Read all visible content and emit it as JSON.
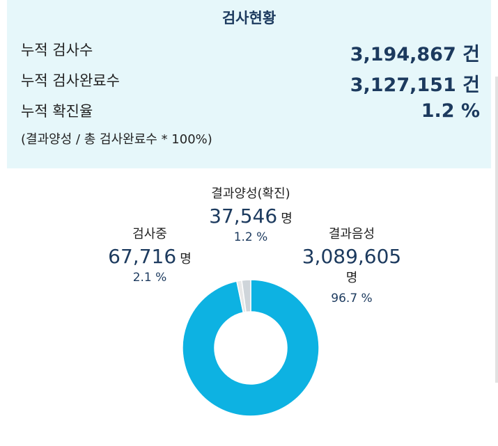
{
  "summary": {
    "title": "검사현황",
    "rows": [
      {
        "label": "누적 검사수",
        "value": "3,194,867",
        "unit": "건"
      },
      {
        "label": "누적 검사완료수",
        "value": "3,127,151",
        "unit": "건"
      },
      {
        "label": "누적 확진율",
        "value": "1.2",
        "unit": "%"
      }
    ],
    "note": "(결과양성 / 총 검사완료수 * 100%)"
  },
  "chart_data": {
    "type": "pie",
    "categories": [
      "결과음성",
      "결과양성(확진)",
      "검사중"
    ],
    "values": [
      3089605,
      37546,
      67716
    ],
    "units": [
      "명",
      "명",
      "명"
    ],
    "percent_labels": [
      "96.7 %",
      "1.2 %",
      "2.1 %"
    ],
    "value_labels": [
      "3,089,605",
      "37,546",
      "67,716"
    ],
    "colors": [
      "#0db2e2",
      "#e8e8e8",
      "#cfd5da"
    ],
    "donut": true
  }
}
